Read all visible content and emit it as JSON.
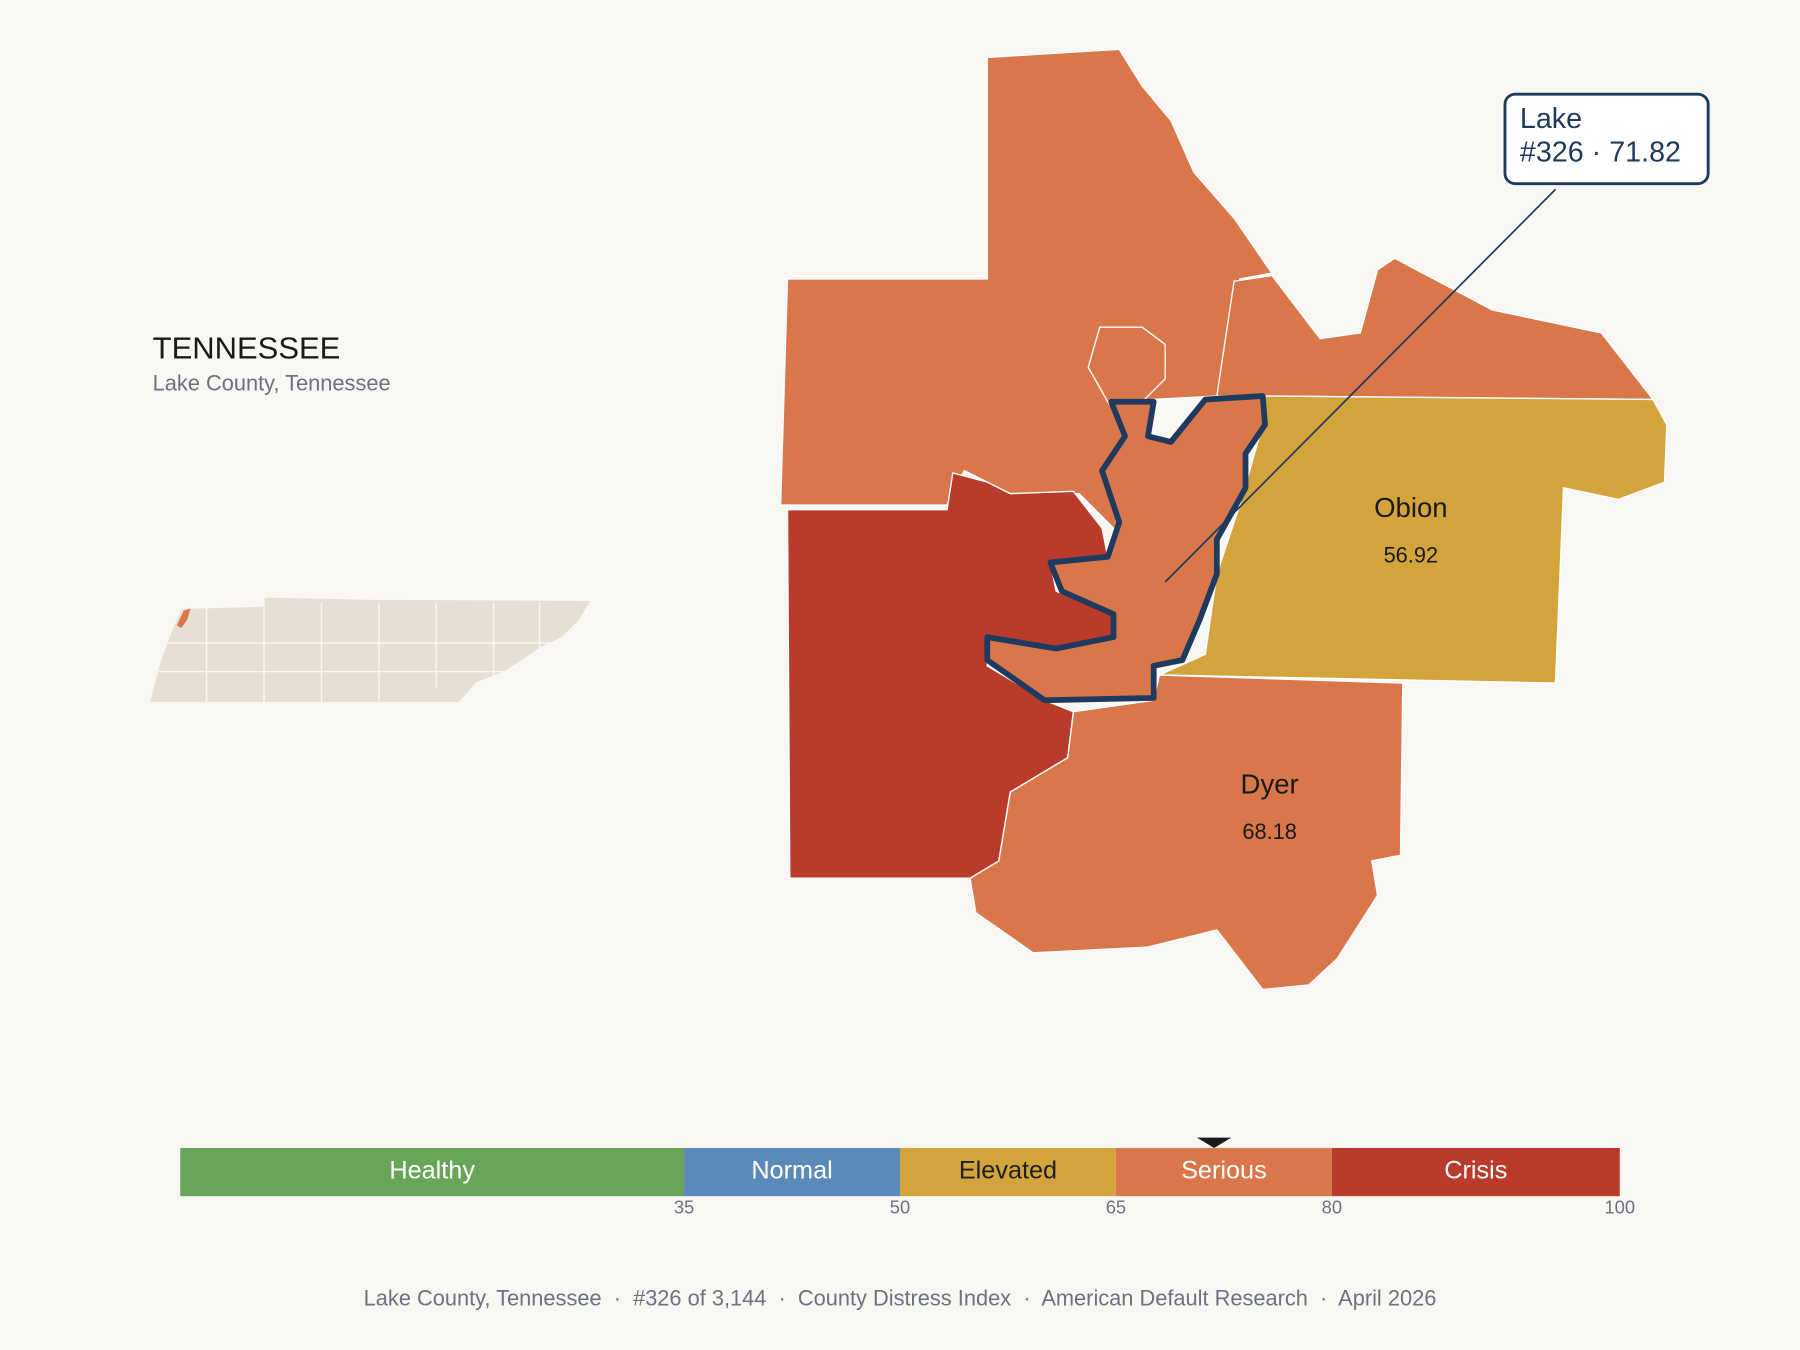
{
  "header": {
    "title": "TENNESSEE",
    "subtitle": "Lake County, Tennessee"
  },
  "counties": [
    {
      "name": "Obion",
      "value": 56.92,
      "color": "#d4a43c"
    },
    {
      "name": "Dyer",
      "value": 68.18,
      "color": "#d9764a"
    }
  ],
  "callout": {
    "lines": [
      "Lake",
      "#326 · 71.82"
    ]
  },
  "scale": {
    "xlim": [
      0,
      100
    ],
    "xticks": [
      35,
      50,
      65,
      80,
      100
    ],
    "bands": [
      {
        "label": "Healthy",
        "color": "#67a659",
        "text_color": "#ffffff"
      },
      {
        "label": "Normal",
        "color": "#5b8ab9",
        "text_color": "#ffffff"
      },
      {
        "label": "Elevated",
        "color": "#d4a43c",
        "text_color": "#1f1f1f"
      },
      {
        "label": "Serious",
        "color": "#d9764a",
        "text_color": "#ffffff"
      },
      {
        "label": "Crisis",
        "color": "#b83b2b",
        "text_color": "#ffffff"
      }
    ],
    "marker": 71.82
  },
  "footer": "Lake County, Tennessee  ·  #326 of 3,144  ·  County Distress Index  ·  American Default Research  ·  April 2026"
}
